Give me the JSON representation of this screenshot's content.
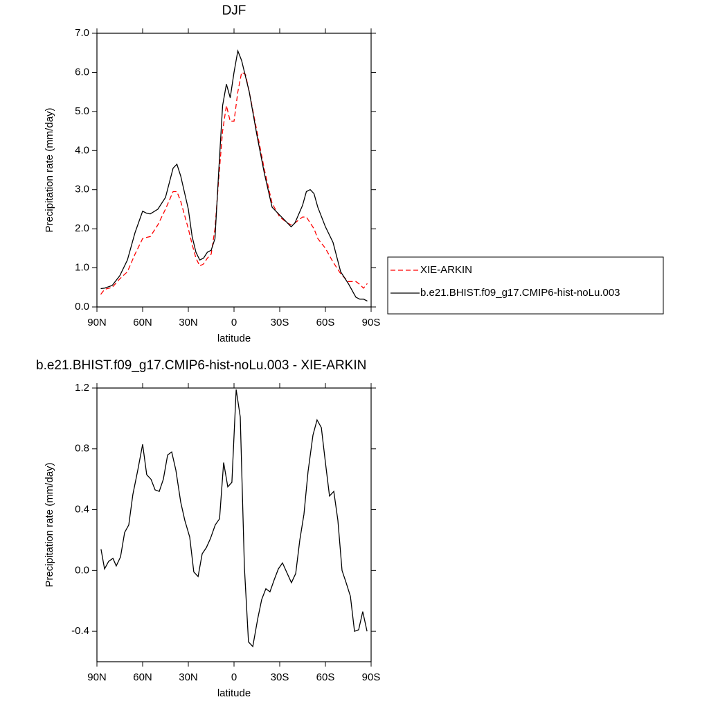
{
  "chart_data": [
    {
      "type": "line",
      "title": "DJF",
      "x_label": "latitude",
      "y_label": "Precipitation rate (mm/day)",
      "x": [
        87.5,
        85,
        80,
        75,
        70,
        65,
        60,
        57.5,
        55,
        50,
        45,
        40,
        37.5,
        35,
        30,
        27.5,
        25,
        22.5,
        20,
        17.5,
        15,
        12.5,
        10,
        7.5,
        5,
        2.5,
        0,
        -2.5,
        -5,
        -7.5,
        -10,
        -15,
        -20,
        -25,
        -30,
        -35,
        -37.5,
        -40,
        -45,
        -47.5,
        -50,
        -52.5,
        -55,
        -60,
        -65,
        -70,
        -75,
        -80,
        -82.5,
        -85,
        -87.5
      ],
      "series": [
        {
          "name": "XIE-ARKIN",
          "color": "#ff0000",
          "dash": true,
          "values": [
            0.32,
            0.45,
            0.5,
            0.72,
            0.9,
            1.35,
            1.75,
            1.78,
            1.8,
            2.1,
            2.5,
            2.95,
            2.95,
            2.7,
            2.0,
            1.6,
            1.25,
            1.05,
            1.1,
            1.25,
            1.35,
            2.0,
            3.3,
            4.5,
            5.15,
            4.75,
            4.75,
            5.5,
            6.0,
            5.95,
            5.5,
            4.5,
            3.5,
            2.65,
            2.3,
            2.15,
            2.1,
            2.15,
            2.3,
            2.3,
            2.15,
            2.0,
            1.75,
            1.5,
            1.15,
            0.85,
            0.65,
            0.65,
            0.58,
            0.48,
            0.6
          ]
        },
        {
          "name": "b.e21.BHIST.f09_g17.CMIP6-hist-noLu.003",
          "color": "#000000",
          "dash": false,
          "values": [
            0.47,
            0.48,
            0.55,
            0.8,
            1.2,
            1.9,
            2.45,
            2.4,
            2.38,
            2.5,
            2.8,
            3.55,
            3.65,
            3.35,
            2.5,
            1.8,
            1.4,
            1.2,
            1.25,
            1.4,
            1.45,
            1.75,
            3.5,
            5.15,
            5.7,
            5.35,
            6.0,
            6.55,
            6.3,
            5.9,
            5.5,
            4.4,
            3.4,
            2.55,
            2.35,
            2.15,
            2.05,
            2.15,
            2.6,
            2.95,
            3.0,
            2.9,
            2.55,
            2.05,
            1.65,
            0.9,
            0.6,
            0.25,
            0.2,
            0.2,
            0.15
          ]
        }
      ],
      "xlim": [
        90,
        -90
      ],
      "xticks": [
        {
          "value": 90,
          "label": "90N"
        },
        {
          "value": 60,
          "label": "60N"
        },
        {
          "value": 30,
          "label": "30N"
        },
        0,
        {
          "value": -30,
          "label": "30S"
        },
        {
          "value": -60,
          "label": "60S"
        },
        {
          "value": -90,
          "label": "90S"
        }
      ],
      "ylim": [
        0,
        7
      ],
      "yticks": [
        {
          "value": 0,
          "label": "0.0"
        },
        {
          "value": 1,
          "label": "1.0"
        },
        {
          "value": 2,
          "label": "2.0"
        },
        {
          "value": 3,
          "label": "3.0"
        },
        {
          "value": 4,
          "label": "4.0"
        },
        {
          "value": 5,
          "label": "5.0"
        },
        {
          "value": 6,
          "label": "6.0"
        },
        {
          "value": 7,
          "label": "7.0"
        }
      ],
      "legend": "right"
    },
    {
      "type": "line",
      "title": "b.e21.BHIST.f09_g17.CMIP6-hist-noLu.003 - XIE-ARKIN",
      "x_label": "latitude",
      "y_label": "Precipitation rate (mm/day)",
      "x": [
        87.3,
        85,
        82.3,
        79.5,
        77.3,
        74.5,
        71.8,
        69.1,
        66.4,
        63.2,
        60,
        57.3,
        54.5,
        51.8,
        49.1,
        46.4,
        43.6,
        40.9,
        38.2,
        35,
        32.3,
        29.1,
        26.4,
        23.6,
        20.9,
        18.2,
        15.5,
        12.3,
        9.5,
        6.8,
        4.1,
        1.4,
        -1.4,
        -4.1,
        -6.8,
        -9.5,
        -12.3,
        -15.5,
        -18.2,
        -20.9,
        -23.6,
        -26.4,
        -29.1,
        -31.8,
        -34.5,
        -37.7,
        -40.5,
        -43.2,
        -45.9,
        -48.6,
        -51.8,
        -54.5,
        -57.3,
        -60,
        -62.7,
        -65.5,
        -68.2,
        -70.9,
        -73.6,
        -76.4,
        -79.1,
        -81.8,
        -84.5,
        -87.3
      ],
      "values": [
        0.14,
        0.01,
        0.06,
        0.08,
        0.03,
        0.09,
        0.25,
        0.3,
        0.5,
        0.66,
        0.83,
        0.63,
        0.6,
        0.53,
        0.52,
        0.6,
        0.76,
        0.78,
        0.66,
        0.45,
        0.33,
        0.22,
        -0.01,
        -0.04,
        0.11,
        0.15,
        0.21,
        0.3,
        0.34,
        0.71,
        0.55,
        0.58,
        1.19,
        1.01,
        0.02,
        -0.47,
        -0.5,
        -0.32,
        -0.19,
        -0.12,
        -0.14,
        -0.06,
        0.01,
        0.05,
        -0.01,
        -0.08,
        -0.02,
        0.2,
        0.37,
        0.65,
        0.89,
        0.99,
        0.94,
        0.71,
        0.49,
        0.52,
        0.33,
        0.0,
        -0.08,
        -0.17,
        -0.4,
        -0.39,
        -0.27,
        -0.4
      ],
      "color": "#000000",
      "xlim": [
        90,
        -90
      ],
      "xticks": [
        {
          "value": 90,
          "label": "90N"
        },
        {
          "value": 60,
          "label": "60N"
        },
        {
          "value": 30,
          "label": "30N"
        },
        0,
        {
          "value": -30,
          "label": "30S"
        },
        {
          "value": -60,
          "label": "60S"
        },
        {
          "value": -90,
          "label": "90S"
        }
      ],
      "ylim": [
        -0.6,
        1.2
      ],
      "yticks": [
        -0.4,
        {
          "value": 0,
          "label": "0.0"
        },
        0.4,
        0.8,
        1.2
      ]
    }
  ]
}
